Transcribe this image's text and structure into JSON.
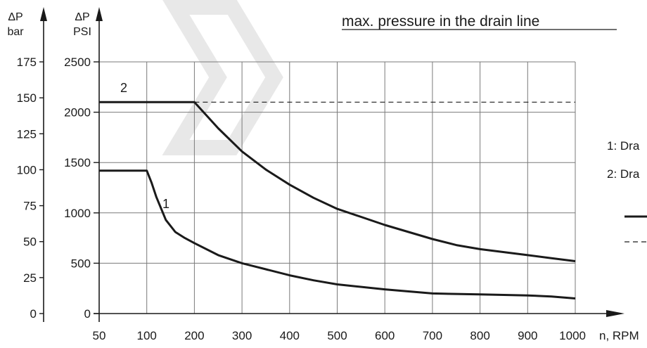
{
  "title": "max. pressure in the drain line",
  "colors": {
    "line": "#1a1a1a",
    "grid": "#7a7a7a",
    "watermark": "#e8e8e8"
  },
  "axes": {
    "bar_label": {
      "sym": "ΔP",
      "unit": "bar"
    },
    "psi_label": {
      "sym": "ΔP",
      "unit": "PSI"
    },
    "x_label": "n, RPM"
  },
  "legend": {
    "items": [
      "1: Dra",
      "2: Dra"
    ]
  },
  "chart_data": {
    "type": "line",
    "title": "max. pressure in the drain line",
    "xlabel": "n, RPM",
    "ylabel": "ΔP PSI",
    "y2label": "ΔP bar",
    "x_ticks": [
      50,
      100,
      200,
      300,
      400,
      500,
      600,
      700,
      800,
      900,
      1000
    ],
    "y_ticks_psi": [
      0,
      500,
      1000,
      1500,
      2000,
      2500
    ],
    "y_ticks_bar": [
      0,
      25,
      50,
      75,
      100,
      125,
      150,
      175
    ],
    "ylim_psi": [
      0,
      2500
    ],
    "ylim_bar": [
      0,
      175
    ],
    "grid": true,
    "series": [
      {
        "name": "1",
        "style": "solid",
        "x": [
          50,
          100,
          110,
          120,
          140,
          160,
          180,
          200,
          250,
          300,
          350,
          400,
          450,
          500,
          600,
          650,
          700,
          800,
          900,
          950,
          1000
        ],
        "y": [
          1420,
          1420,
          1300,
          1160,
          930,
          810,
          750,
          700,
          580,
          500,
          440,
          380,
          330,
          290,
          240,
          220,
          200,
          190,
          180,
          170,
          150
        ]
      },
      {
        "name": "2",
        "style": "solid",
        "x": [
          50,
          200,
          250,
          300,
          350,
          400,
          450,
          500,
          550,
          600,
          650,
          700,
          750,
          800,
          850,
          900,
          950,
          1000
        ],
        "y": [
          2100,
          2100,
          1840,
          1610,
          1430,
          1280,
          1150,
          1040,
          960,
          880,
          810,
          740,
          680,
          640,
          610,
          580,
          550,
          520
        ]
      },
      {
        "name": "2",
        "style": "dashed",
        "x": [
          200,
          1000
        ],
        "y": [
          2100,
          2100
        ]
      }
    ]
  }
}
